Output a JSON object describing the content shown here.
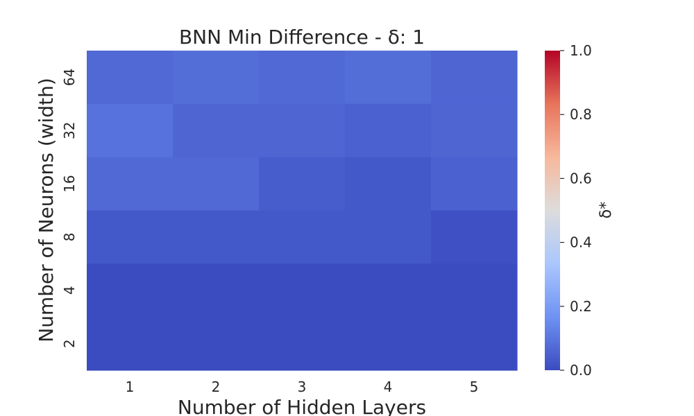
{
  "chart_data": {
    "type": "heatmap",
    "title": "BNN Min Difference - δ: 1",
    "xlabel": "Number of Hidden Layers",
    "ylabel": "Number of Neurons (width)",
    "x_categories": [
      "1",
      "2",
      "3",
      "4",
      "5"
    ],
    "y_categories": [
      "64",
      "32",
      "16",
      "8",
      "4",
      "2"
    ],
    "values": [
      [
        0.07,
        0.08,
        0.07,
        0.08,
        0.06
      ],
      [
        0.09,
        0.06,
        0.06,
        0.05,
        0.06
      ],
      [
        0.07,
        0.07,
        0.04,
        0.03,
        0.05
      ],
      [
        0.03,
        0.03,
        0.03,
        0.03,
        0.01
      ],
      [
        0.0,
        0.0,
        0.0,
        0.0,
        0.0
      ],
      [
        0.0,
        0.0,
        0.0,
        0.0,
        0.0
      ]
    ],
    "colorbar": {
      "label": "δ*",
      "range": [
        0.0,
        1.0
      ],
      "ticks": [
        "0.0",
        "0.2",
        "0.4",
        "0.6",
        "0.8",
        "1.0"
      ],
      "colormap": "coolwarm",
      "colors": [
        "#3b4cc0",
        "#6f92f3",
        "#aac7fd",
        "#dddcdc",
        "#f7b89c",
        "#e7745b",
        "#b40426"
      ]
    },
    "grid": false
  }
}
